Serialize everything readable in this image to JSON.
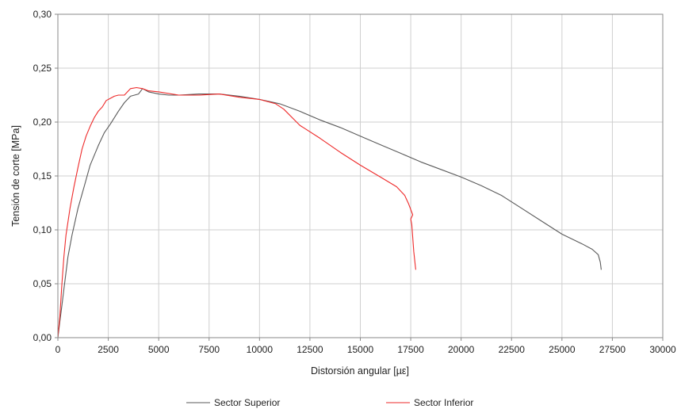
{
  "chart_data": {
    "type": "line",
    "title": "",
    "xlabel": "Distorsión angular [µε]",
    "ylabel": "Tensión de corte  [MPa]",
    "xlim": [
      0,
      30000
    ],
    "ylim": [
      0,
      0.3
    ],
    "x_ticks": [
      0,
      2500,
      5000,
      7500,
      10000,
      12500,
      15000,
      17500,
      20000,
      22500,
      25000,
      27500,
      30000
    ],
    "x_tick_labels": [
      "0",
      "2500",
      "5000",
      "7500",
      "10000",
      "12500",
      "15000",
      "17500",
      "20000",
      "22500",
      "25000",
      "27500",
      "30000"
    ],
    "y_ticks": [
      0,
      0.05,
      0.1,
      0.15,
      0.2,
      0.25,
      0.3
    ],
    "y_tick_labels": [
      "0,00",
      "0,05",
      "0,10",
      "0,15",
      "0,20",
      "0,25",
      "0,30"
    ],
    "grid": true,
    "legend_position": "bottom",
    "series": [
      {
        "name": "Sector Superior",
        "color": "#5a5a5a",
        "x": [
          0,
          100,
          200,
          300,
          500,
          700,
          1000,
          1300,
          1600,
          2000,
          2300,
          2600,
          3000,
          3300,
          3600,
          4000,
          4200,
          4500,
          5000,
          5500,
          6000,
          7000,
          8000,
          9000,
          10000,
          11000,
          12000,
          13000,
          14000,
          15000,
          16000,
          17000,
          18000,
          19000,
          20000,
          21000,
          22000,
          23000,
          24000,
          25000,
          26000,
          26500,
          26800,
          26900,
          26950
        ],
        "y": [
          0,
          0.015,
          0.03,
          0.045,
          0.075,
          0.095,
          0.12,
          0.14,
          0.16,
          0.178,
          0.19,
          0.198,
          0.21,
          0.218,
          0.224,
          0.226,
          0.231,
          0.228,
          0.226,
          0.225,
          0.225,
          0.226,
          0.226,
          0.224,
          0.221,
          0.217,
          0.21,
          0.202,
          0.195,
          0.187,
          0.179,
          0.171,
          0.163,
          0.156,
          0.149,
          0.141,
          0.132,
          0.12,
          0.108,
          0.096,
          0.087,
          0.082,
          0.077,
          0.07,
          0.063
        ]
      },
      {
        "name": "Sector Inferior",
        "color": "#ee2a2a",
        "x": [
          0,
          100,
          200,
          300,
          400,
          600,
          800,
          1000,
          1200,
          1400,
          1600,
          1800,
          2000,
          2200,
          2400,
          2600,
          2800,
          3000,
          3300,
          3600,
          3900,
          4200,
          4500,
          5000,
          6000,
          7000,
          8000,
          9000,
          10000,
          10800,
          11200,
          12000,
          13000,
          14000,
          15000,
          16000,
          16800,
          17200,
          17400,
          17600,
          17500,
          17550,
          17650,
          17750
        ],
        "y": [
          0,
          0.02,
          0.05,
          0.075,
          0.095,
          0.12,
          0.14,
          0.158,
          0.175,
          0.187,
          0.196,
          0.204,
          0.21,
          0.214,
          0.22,
          0.222,
          0.224,
          0.225,
          0.225,
          0.231,
          0.232,
          0.231,
          0.229,
          0.228,
          0.225,
          0.225,
          0.226,
          0.223,
          0.221,
          0.217,
          0.212,
          0.197,
          0.185,
          0.172,
          0.16,
          0.149,
          0.14,
          0.132,
          0.124,
          0.114,
          0.11,
          0.105,
          0.08,
          0.063
        ]
      }
    ]
  }
}
